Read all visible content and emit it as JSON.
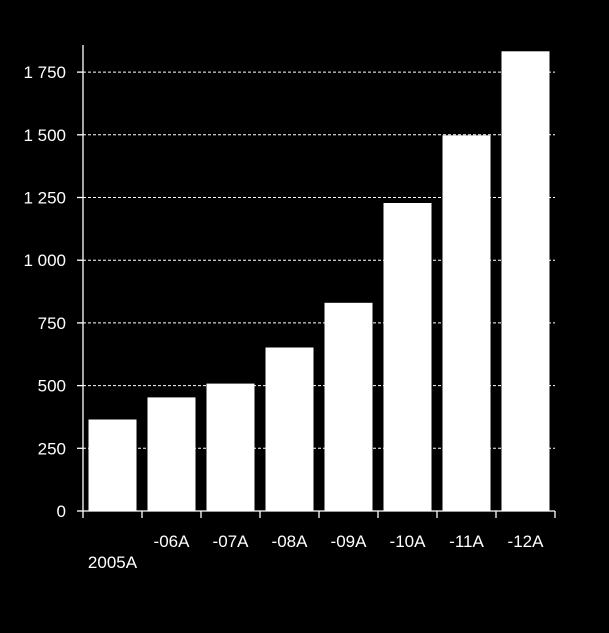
{
  "chart_data": {
    "type": "bar",
    "title": "",
    "xlabel": "",
    "ylabel": "",
    "categories": [
      "2005A",
      "-06A",
      "-07A",
      "-08A",
      "-09A",
      "-10A",
      "-11A",
      "-12A"
    ],
    "values": [
      365,
      453,
      508,
      652,
      830,
      1228,
      1498,
      1833
    ],
    "ylim": [
      0,
      1875
    ],
    "yticks": [
      0,
      250,
      500,
      750,
      1000,
      1250,
      1500,
      1750
    ],
    "ytick_labels": [
      "0",
      "250",
      "500",
      "750",
      "1 000",
      "1 250",
      "1 500",
      "1 750"
    ],
    "grid": true,
    "legend": "none",
    "colors": {
      "background": "#000000",
      "bar": "#ffffff",
      "text": "#ffffff",
      "grid": "#ffffff"
    }
  }
}
